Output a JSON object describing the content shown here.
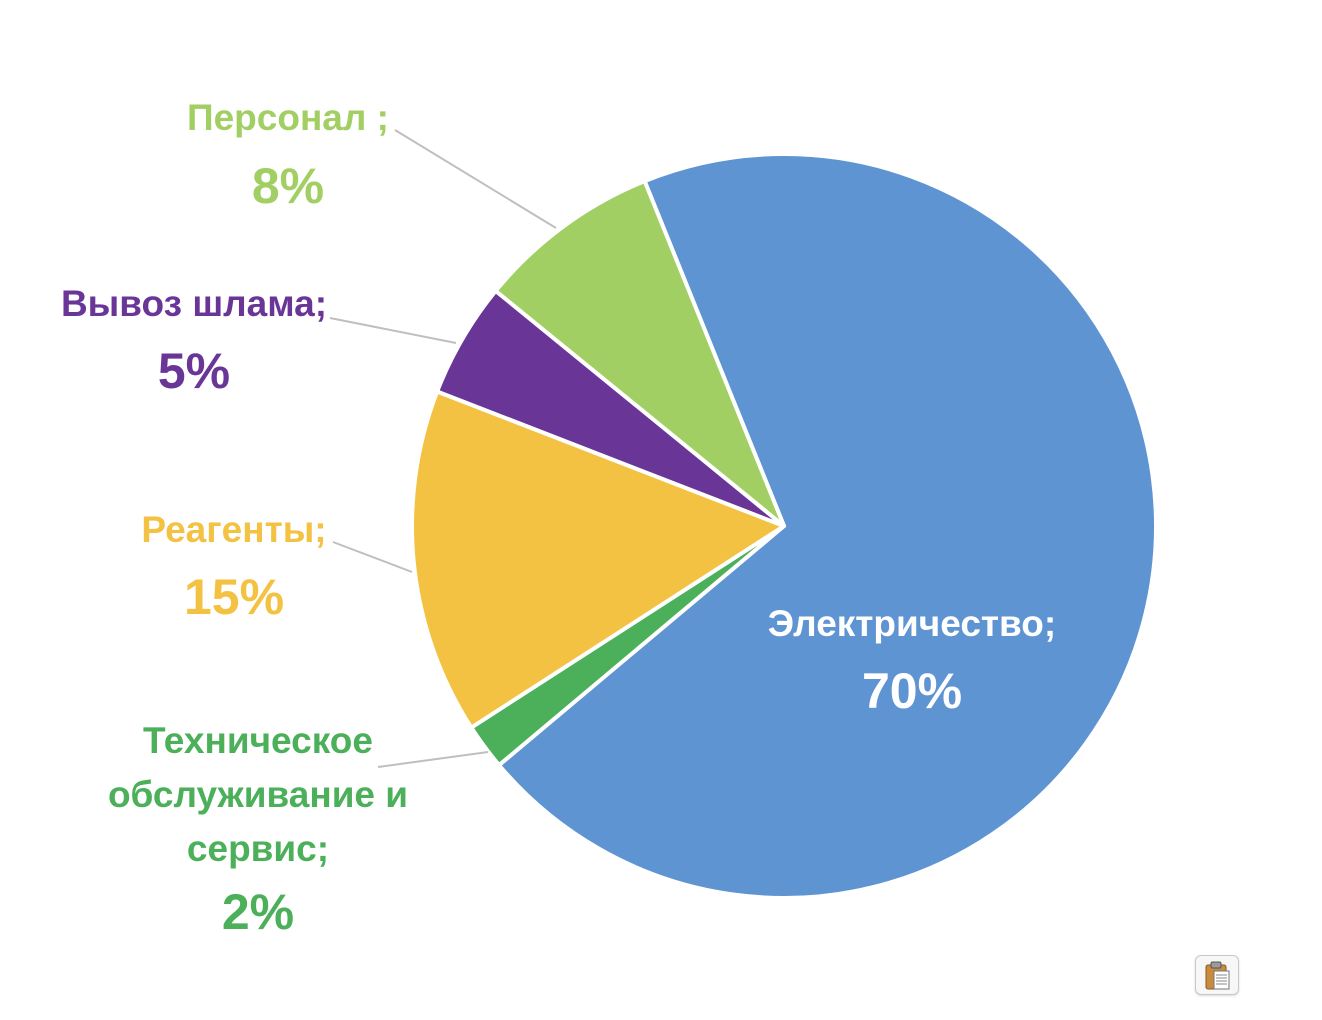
{
  "chart_data": {
    "type": "pie",
    "title": "",
    "slices": [
      {
        "name": "Электричество;",
        "value": 70,
        "label": "70%",
        "color": "#5f94d3",
        "label_color": "#ffffff"
      },
      {
        "name": "Техническое обслуживание и сервис;",
        "name_lines": [
          "Техническое",
          "обслуживание и",
          "сервис;"
        ],
        "value": 2,
        "label": "2%",
        "color": "#4caf5a",
        "label_color": "#4caf5a"
      },
      {
        "name": "Реагенты;",
        "value": 15,
        "label": "15%",
        "color": "#f4c242",
        "label_color": "#f4c242"
      },
      {
        "name": "Вывоз шлама;",
        "value": 5,
        "label": "5%",
        "color": "#693697",
        "label_color": "#693697"
      },
      {
        "name": "Персонал ;",
        "value": 8,
        "label": "8%",
        "color": "#a2cf63",
        "label_color": "#a2cf63"
      }
    ],
    "legend": "none",
    "data_labels": "name-and-percent"
  },
  "toolbar": {
    "paste_options_icon": "clipboard-icon"
  }
}
